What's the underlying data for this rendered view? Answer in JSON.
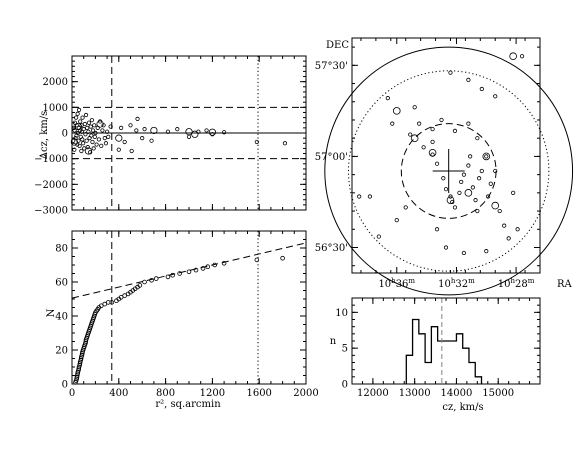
{
  "chart_data": [
    {
      "type": "scatter",
      "panel": "velocity-radius",
      "ylabel": "Δcz, km/s",
      "xlim": [
        0,
        2000
      ],
      "ylim": [
        -3000,
        3000
      ],
      "yticks": [
        {
          "v": 2000,
          "label": "2000"
        },
        {
          "v": 1000,
          "label": "1000"
        },
        {
          "v": 0,
          "label": "0"
        },
        {
          "v": -1000,
          "label": "−1000"
        },
        {
          "v": -2000,
          "label": "−2000"
        },
        {
          "v": -3000,
          "label": "−3000"
        }
      ],
      "hlines": [
        {
          "y": 1000,
          "style": "dashed"
        },
        {
          "y": 0,
          "style": "solid"
        },
        {
          "y": -1000,
          "style": "dashed"
        }
      ],
      "vlines": [
        {
          "x": 340,
          "style": "dashed"
        },
        {
          "x": 1590,
          "style": "dotted"
        }
      ],
      "points": [
        [
          10,
          -300
        ],
        [
          15,
          200
        ],
        [
          20,
          -650
        ],
        [
          22,
          100
        ],
        [
          25,
          400
        ],
        [
          30,
          -200
        ],
        [
          35,
          600
        ],
        [
          38,
          -100
        ],
        [
          40,
          300
        ],
        [
          45,
          -450
        ],
        [
          48,
          750
        ],
        [
          50,
          0
        ],
        [
          55,
          -300
        ],
        [
          58,
          200
        ],
        [
          60,
          900
        ],
        [
          65,
          -500
        ],
        [
          68,
          100
        ],
        [
          70,
          450
        ],
        [
          75,
          -150
        ],
        [
          80,
          -700
        ],
        [
          82,
          300
        ],
        [
          85,
          50
        ],
        [
          88,
          -250
        ],
        [
          90,
          600
        ],
        [
          95,
          -400
        ],
        [
          100,
          150
        ],
        [
          105,
          -600
        ],
        [
          110,
          350
        ],
        [
          115,
          -50
        ],
        [
          120,
          700
        ],
        [
          125,
          -300
        ],
        [
          130,
          200
        ],
        [
          135,
          -550
        ],
        [
          140,
          50
        ],
        [
          145,
          400
        ],
        [
          150,
          -200
        ],
        [
          155,
          -750
        ],
        [
          160,
          250
        ],
        [
          165,
          -100
        ],
        [
          170,
          500
        ],
        [
          175,
          -350
        ],
        [
          180,
          100
        ],
        [
          185,
          -600
        ],
        [
          190,
          300
        ],
        [
          195,
          -150
        ],
        [
          200,
          0
        ],
        [
          210,
          -450
        ],
        [
          220,
          200
        ],
        [
          230,
          -250
        ],
        [
          240,
          450
        ],
        [
          250,
          -500
        ],
        [
          260,
          100
        ],
        [
          270,
          300
        ],
        [
          280,
          -200
        ],
        [
          290,
          -400
        ],
        [
          300,
          50
        ],
        [
          310,
          -150
        ],
        [
          330,
          250
        ],
        [
          400,
          -650
        ],
        [
          420,
          200
        ],
        [
          450,
          -350
        ],
        [
          500,
          300
        ],
        [
          510,
          -700
        ],
        [
          550,
          100
        ],
        [
          560,
          550
        ],
        [
          600,
          -200
        ],
        [
          620,
          150
        ],
        [
          680,
          -300
        ],
        [
          820,
          50
        ],
        [
          900,
          150
        ],
        [
          1000,
          -150
        ],
        [
          1080,
          50
        ],
        [
          1150,
          100
        ],
        [
          1200,
          -50
        ],
        [
          1300,
          30
        ],
        [
          1580,
          -350
        ],
        [
          1820,
          -400
        ]
      ],
      "open_circles": [
        [
          20,
          -350
        ],
        [
          55,
          250
        ],
        [
          140,
          -700
        ],
        [
          240,
          350
        ],
        [
          400,
          -200
        ],
        [
          700,
          100
        ],
        [
          1000,
          50
        ],
        [
          1050,
          -50
        ],
        [
          1200,
          30
        ]
      ]
    },
    {
      "type": "line",
      "panel": "cumulative-counts",
      "ylabel": "N",
      "xlabel": "r², sq.arcmin",
      "xlim": [
        0,
        2000
      ],
      "ylim": [
        0,
        90
      ],
      "xticks": [
        {
          "v": 0,
          "label": "0"
        },
        {
          "v": 400,
          "label": "400"
        },
        {
          "v": 800,
          "label": "800"
        },
        {
          "v": 1200,
          "label": "1200"
        },
        {
          "v": 1600,
          "label": "1600"
        },
        {
          "v": 2000,
          "label": "2000"
        }
      ],
      "yticks": [
        {
          "v": 0,
          "label": "0"
        },
        {
          "v": 20,
          "label": "20"
        },
        {
          "v": 40,
          "label": "40"
        },
        {
          "v": 60,
          "label": "60"
        },
        {
          "v": 80,
          "label": "80"
        }
      ],
      "vlines": [
        {
          "x": 340,
          "style": "dashed"
        },
        {
          "x": 1590,
          "style": "dotted"
        }
      ],
      "fit_line": {
        "x": [
          0,
          2000
        ],
        "y": [
          50.5,
          83
        ]
      },
      "points": [
        [
          30,
          1
        ],
        [
          35,
          2
        ],
        [
          40,
          3
        ],
        [
          42,
          4
        ],
        [
          45,
          5
        ],
        [
          48,
          6
        ],
        [
          50,
          7
        ],
        [
          55,
          8
        ],
        [
          58,
          9
        ],
        [
          60,
          10
        ],
        [
          65,
          11
        ],
        [
          68,
          12
        ],
        [
          70,
          13
        ],
        [
          75,
          14
        ],
        [
          78,
          15
        ],
        [
          80,
          16
        ],
        [
          85,
          17
        ],
        [
          88,
          18
        ],
        [
          90,
          19
        ],
        [
          95,
          20
        ],
        [
          100,
          21
        ],
        [
          105,
          22
        ],
        [
          110,
          23
        ],
        [
          115,
          24
        ],
        [
          118,
          25
        ],
        [
          120,
          26
        ],
        [
          125,
          27
        ],
        [
          130,
          28
        ],
        [
          135,
          29
        ],
        [
          140,
          30
        ],
        [
          145,
          31
        ],
        [
          150,
          32
        ],
        [
          155,
          33
        ],
        [
          160,
          34
        ],
        [
          165,
          35
        ],
        [
          170,
          36
        ],
        [
          175,
          37
        ],
        [
          180,
          38
        ],
        [
          185,
          39
        ],
        [
          190,
          40
        ],
        [
          195,
          41
        ],
        [
          200,
          42
        ],
        [
          210,
          43
        ],
        [
          220,
          44
        ],
        [
          230,
          45
        ],
        [
          250,
          46
        ],
        [
          280,
          47
        ],
        [
          310,
          48
        ],
        [
          340,
          48
        ],
        [
          380,
          49
        ],
        [
          400,
          50
        ],
        [
          420,
          51
        ],
        [
          450,
          52
        ],
        [
          480,
          53
        ],
        [
          500,
          54
        ],
        [
          520,
          55
        ],
        [
          540,
          56
        ],
        [
          560,
          57
        ],
        [
          580,
          58
        ],
        [
          620,
          60
        ],
        [
          680,
          61
        ],
        [
          720,
          62
        ],
        [
          820,
          63
        ],
        [
          860,
          64
        ],
        [
          920,
          65
        ],
        [
          1000,
          66
        ],
        [
          1060,
          67
        ],
        [
          1120,
          68
        ],
        [
          1160,
          69
        ],
        [
          1220,
          70
        ],
        [
          1300,
          71
        ],
        [
          1580,
          73
        ],
        [
          1800,
          74
        ]
      ]
    },
    {
      "type": "scatter",
      "panel": "sky-map",
      "ylabel": "DEC",
      "xlabel": "RA",
      "x_reversed": true,
      "xlim": [
        10.65,
        10.44
      ],
      "ylim": [
        56.36,
        57.65
      ],
      "xticks": [
        {
          "v": 10.6,
          "h": "10",
          "m": "36"
        },
        {
          "v": 10.5333,
          "h": "10",
          "m": "32"
        },
        {
          "v": 10.4667,
          "h": "10",
          "m": "28"
        }
      ],
      "yticks": [
        {
          "v": 57.5,
          "label": "57°30'"
        },
        {
          "v": 57.0,
          "label": "57°00'"
        },
        {
          "v": 56.5,
          "label": "56°30'"
        }
      ],
      "center": [
        10.542,
        56.92
      ],
      "circles": [
        {
          "radius_deg": 0.68,
          "style": "solid"
        },
        {
          "radius_deg": 0.55,
          "style": "dotted"
        },
        {
          "radius_deg": 0.26,
          "style": "dashed"
        }
      ],
      "points": [
        [
          10.61,
          57.32
        ],
        [
          10.605,
          57.18
        ],
        [
          10.585,
          57.12
        ],
        [
          10.57,
          57.05
        ],
        [
          10.56,
          57.01
        ],
        [
          10.555,
          56.96
        ],
        [
          10.548,
          56.88
        ],
        [
          10.545,
          56.82
        ],
        [
          10.54,
          56.78
        ],
        [
          10.538,
          56.75
        ],
        [
          10.535,
          56.72
        ],
        [
          10.53,
          56.8
        ],
        [
          10.528,
          56.86
        ],
        [
          10.525,
          56.9
        ],
        [
          10.52,
          56.95
        ],
        [
          10.518,
          57.0
        ],
        [
          10.515,
          56.83
        ],
        [
          10.512,
          56.76
        ],
        [
          10.51,
          56.7
        ],
        [
          10.508,
          56.88
        ],
        [
          10.505,
          56.92
        ],
        [
          10.5,
          57.0
        ],
        [
          10.498,
          56.78
        ],
        [
          10.495,
          56.85
        ],
        [
          10.49,
          56.92
        ],
        [
          10.485,
          56.7
        ],
        [
          10.48,
          56.62
        ],
        [
          10.475,
          56.55
        ],
        [
          10.47,
          56.8
        ],
        [
          10.465,
          56.6
        ],
        [
          10.56,
          57.08
        ],
        [
          10.575,
          57.18
        ],
        [
          10.59,
          56.72
        ],
        [
          10.6,
          56.65
        ],
        [
          10.62,
          56.56
        ],
        [
          10.63,
          56.78
        ],
        [
          10.642,
          56.78
        ],
        [
          10.54,
          57.46
        ],
        [
          10.52,
          57.42
        ],
        [
          10.505,
          57.37
        ],
        [
          10.49,
          57.33
        ],
        [
          10.46,
          57.55
        ],
        [
          10.555,
          56.6
        ],
        [
          10.545,
          56.5
        ],
        [
          10.525,
          56.47
        ],
        [
          10.5,
          56.48
        ],
        [
          10.58,
          57.27
        ],
        [
          10.56,
          57.15
        ],
        [
          10.55,
          57.2
        ],
        [
          10.535,
          57.14
        ],
        [
          10.52,
          57.18
        ],
        [
          10.51,
          57.1
        ]
      ],
      "open_circles": [
        [
          10.58,
          57.1
        ],
        [
          10.56,
          57.02
        ],
        [
          10.54,
          56.76
        ],
        [
          10.52,
          56.8
        ],
        [
          10.47,
          57.55
        ],
        [
          10.5,
          57.0
        ],
        [
          10.6,
          57.25
        ],
        [
          10.49,
          56.73
        ]
      ]
    },
    {
      "type": "line",
      "panel": "velocity-histogram",
      "ylabel": "n",
      "xlabel": "cz, km/s",
      "xlim": [
        11500,
        16000
      ],
      "ylim": [
        0,
        12
      ],
      "xticks": [
        {
          "v": 12000,
          "label": "12000"
        },
        {
          "v": 13000,
          "label": "13000"
        },
        {
          "v": 14000,
          "label": "14000"
        },
        {
          "v": 15000,
          "label": "15000"
        }
      ],
      "yticks": [
        {
          "v": 0,
          "label": "0"
        },
        {
          "v": 5,
          "label": "5"
        },
        {
          "v": 10,
          "label": "10"
        }
      ],
      "mean_cz": 13650,
      "bin_width": 150,
      "bins": [
        {
          "x": 12875,
          "n": 4
        },
        {
          "x": 13025,
          "n": 9
        },
        {
          "x": 13175,
          "n": 7
        },
        {
          "x": 13325,
          "n": 3
        },
        {
          "x": 13475,
          "n": 8
        },
        {
          "x": 13625,
          "n": 6
        },
        {
          "x": 13775,
          "n": 6
        },
        {
          "x": 13925,
          "n": 6
        },
        {
          "x": 14075,
          "n": 7
        },
        {
          "x": 14225,
          "n": 5
        },
        {
          "x": 14375,
          "n": 3
        },
        {
          "x": 14525,
          "n": 1
        }
      ]
    }
  ]
}
